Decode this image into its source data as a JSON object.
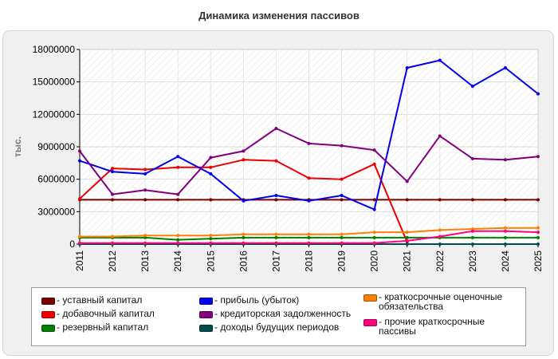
{
  "chart_data": {
    "type": "line",
    "title": "Динамика изменения пассивов",
    "ylabel": "тыс.",
    "xlabel": "",
    "x": [
      "2011",
      "2012",
      "2013",
      "2014",
      "2015",
      "2016",
      "2017",
      "2018",
      "2019",
      "2020",
      "2021",
      "2022",
      "2023",
      "2024",
      "2025"
    ],
    "ylim": [
      0,
      18000000
    ],
    "yticks": [
      "0",
      "3000000",
      "6000000",
      "9000000",
      "12000000",
      "15000000",
      "18000000"
    ],
    "grid": true,
    "legend_position": "bottom",
    "series": [
      {
        "name": "- уставный капитал",
        "color": "#7a0000",
        "values": [
          4100000,
          4100000,
          4100000,
          4100000,
          4100000,
          4100000,
          4100000,
          4100000,
          4100000,
          4100000,
          4100000,
          4100000,
          4100000,
          4100000,
          4100000
        ]
      },
      {
        "name": "- добавочный капитал",
        "color": "#ee0000",
        "values": [
          4200000,
          7000000,
          6900000,
          7100000,
          7100000,
          7800000,
          7700000,
          6100000,
          6000000,
          7400000,
          200000,
          null,
          null,
          null,
          null
        ]
      },
      {
        "name": "- резервный капитал",
        "color": "#008000",
        "values": [
          600000,
          600000,
          600000,
          400000,
          500000,
          600000,
          600000,
          600000,
          600000,
          600000,
          600000,
          600000,
          600000,
          600000,
          600000
        ]
      },
      {
        "name": "- прибыль (убыток)",
        "color": "#0000ee",
        "values": [
          7700000,
          6700000,
          6500000,
          8100000,
          6500000,
          4000000,
          4500000,
          4000000,
          4500000,
          3200000,
          16300000,
          17000000,
          14600000,
          16300000,
          13900000
        ]
      },
      {
        "name": "- кредиторская задолженность",
        "color": "#800080",
        "values": [
          8600000,
          4600000,
          5000000,
          4600000,
          8000000,
          8600000,
          10700000,
          9300000,
          9100000,
          8700000,
          5800000,
          10000000,
          7900000,
          7800000,
          8100000
        ]
      },
      {
        "name": "- доходы будущих периодов",
        "color": "#004d4d",
        "values": [
          0,
          0,
          0,
          0,
          0,
          0,
          0,
          0,
          0,
          0,
          0,
          0,
          0,
          0,
          0
        ]
      },
      {
        "name": "- краткосрочные оценочные обязательства",
        "color": "#ff8000",
        "values": [
          700000,
          700000,
          800000,
          800000,
          800000,
          900000,
          900000,
          900000,
          900000,
          1100000,
          1100000,
          1300000,
          1400000,
          1500000,
          1500000
        ]
      },
      {
        "name": "- прочие краткосрочные пассивы",
        "color": "#ff0080",
        "values": [
          100000,
          100000,
          100000,
          100000,
          100000,
          100000,
          100000,
          100000,
          100000,
          100000,
          300000,
          700000,
          1200000,
          1200000,
          1100000
        ]
      }
    ]
  }
}
